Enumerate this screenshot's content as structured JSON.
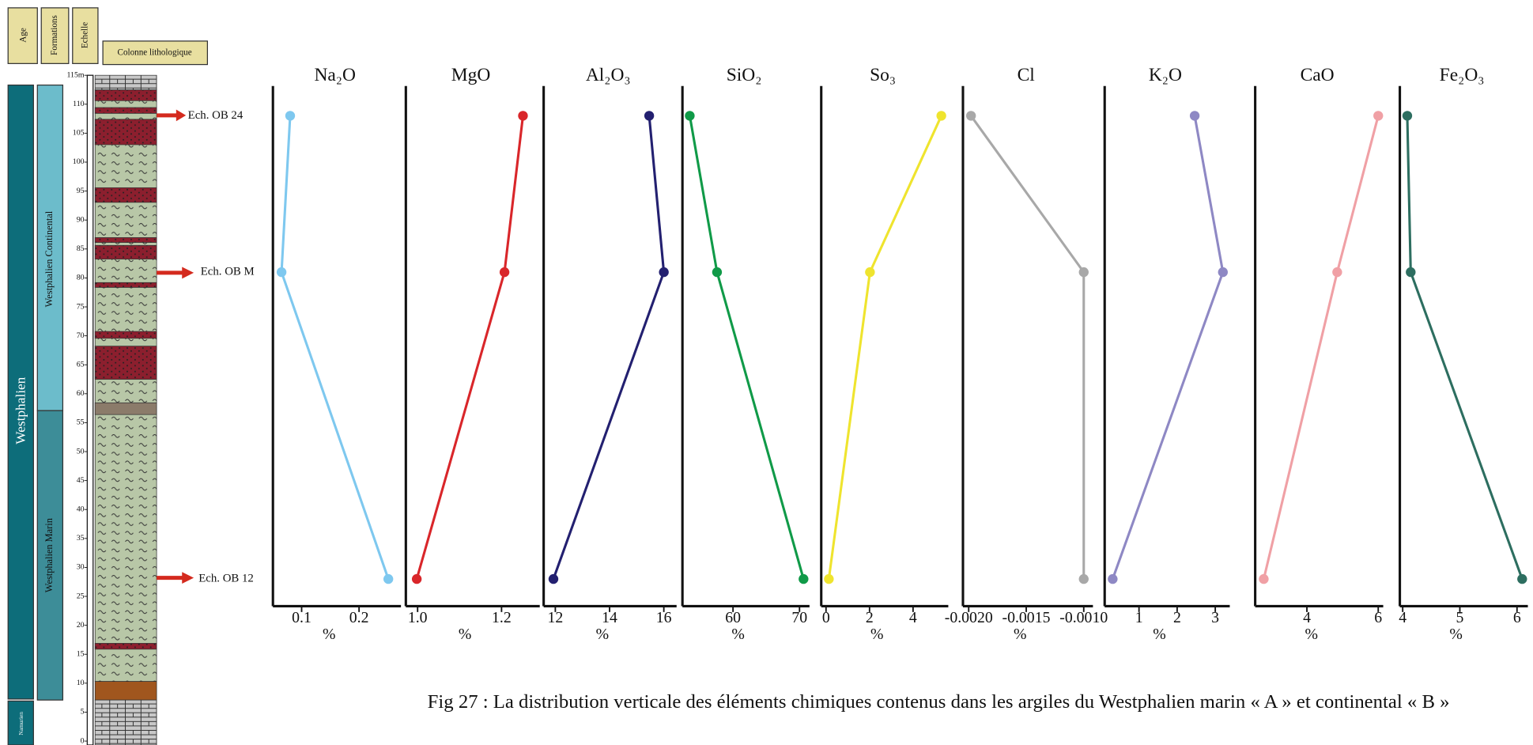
{
  "column": {
    "headers": [
      "Age",
      "Formations",
      "Echelle",
      "Colonne lithologique"
    ],
    "age": [
      "Westphalien",
      "Namurien"
    ],
    "formations": [
      "Westphalien Continental",
      "Westphalien Marin"
    ],
    "scale": [
      {
        "value": 115,
        "label": "115m"
      },
      110,
      105,
      100,
      95,
      90,
      85,
      80,
      75,
      70,
      65,
      60,
      55,
      50,
      45,
      40,
      35,
      30,
      25,
      20,
      15,
      10,
      5,
      0
    ],
    "samples": [
      "Ech. OB 24",
      "Ech. OB M",
      "Ech. OB 12"
    ]
  },
  "chart_data": [
    {
      "type": "line",
      "title": "Na₂O",
      "x_label": "%",
      "color": "#7ec8ef",
      "y": [
        108,
        81,
        28
      ],
      "ylim": [
        0,
        115
      ],
      "values": [
        0.08,
        0.065,
        0.251
      ],
      "xlim": [
        0.05,
        0.273
      ],
      "xticks": [
        0.1,
        0.2
      ]
    },
    {
      "type": "line",
      "title": "MgO",
      "x_label": "%",
      "color": "#d9262a",
      "y": [
        108,
        81,
        28
      ],
      "ylim": [
        0,
        115
      ],
      "values": [
        1.251,
        1.207,
        0.998
      ],
      "xlim": [
        0.972,
        1.291
      ],
      "xticks": [
        {
          "value": 1,
          "label": "1.0"
        },
        1.2
      ]
    },
    {
      "type": "line",
      "title": "Al₂O₃",
      "x_label": "%",
      "color": "#232070",
      "y": [
        108,
        81,
        28
      ],
      "ylim": [
        0,
        115
      ],
      "values": [
        15.46,
        16.0,
        11.93
      ],
      "xlim": [
        11.57,
        16.47
      ],
      "xticks": [
        12,
        14,
        16
      ]
    },
    {
      "type": "line",
      "title": "SiO₂",
      "x_label": "%",
      "color": "#109a48",
      "y": [
        108,
        81,
        28
      ],
      "ylim": [
        0,
        115
      ],
      "values": [
        53.5,
        57.6,
        70.6
      ],
      "xlim": [
        52.4,
        71.5
      ],
      "xticks": [
        60,
        70
      ]
    },
    {
      "type": "line",
      "title": "So₃",
      "x_label": "%",
      "color": "#efe42e",
      "y": [
        108,
        81,
        28
      ],
      "ylim": [
        0,
        115
      ],
      "values": [
        5.3,
        2.02,
        0.13
      ],
      "xlim": [
        -0.22,
        5.62
      ],
      "xticks": [
        0,
        2,
        4
      ]
    },
    {
      "type": "line",
      "title": "Cl",
      "x_label": "%",
      "color": "#a8a8a8",
      "y": [
        108,
        81,
        28
      ],
      "ylim": [
        0,
        115
      ],
      "values": [
        -0.00198,
        -0.001,
        -0.001
      ],
      "xlim": [
        -0.00205,
        -0.00092
      ],
      "xticks": [
        {
          "value": -0.002,
          "label": "-0.0020"
        },
        {
          "value": -0.0015,
          "label": "-0.0015"
        },
        {
          "value": -0.001,
          "label": "-0.0010"
        }
      ]
    },
    {
      "type": "line",
      "title": "K₂O",
      "x_label": "%",
      "color": "#8e88c4",
      "y": [
        108,
        81,
        28
      ],
      "ylim": [
        0,
        115
      ],
      "values": [
        2.46,
        3.2,
        0.31
      ],
      "xlim": [
        0.1,
        3.38
      ],
      "xticks": [
        1,
        2,
        3
      ]
    },
    {
      "type": "line",
      "title": "CaO",
      "x_label": "%",
      "color": "#f0a0a5",
      "y": [
        108,
        81,
        28
      ],
      "ylim": [
        0,
        115
      ],
      "values": [
        6.0,
        4.85,
        2.79
      ],
      "xlim": [
        2.55,
        6.14
      ],
      "xticks": [
        4,
        6
      ]
    },
    {
      "type": "line",
      "title": "Fe₂O₃",
      "x_label": "%",
      "color": "#2d6e60",
      "y": [
        108,
        81,
        28
      ],
      "ylim": [
        0,
        115
      ],
      "values": [
        4.08,
        4.14,
        6.09
      ],
      "xlim": [
        3.95,
        6.19
      ],
      "xticks": [
        4,
        5,
        6
      ]
    }
  ],
  "caption": "Fig 27 : La distribution verticale des éléments chimiques contenus dans les argiles du Westphalien marin « A » et continental « B »"
}
